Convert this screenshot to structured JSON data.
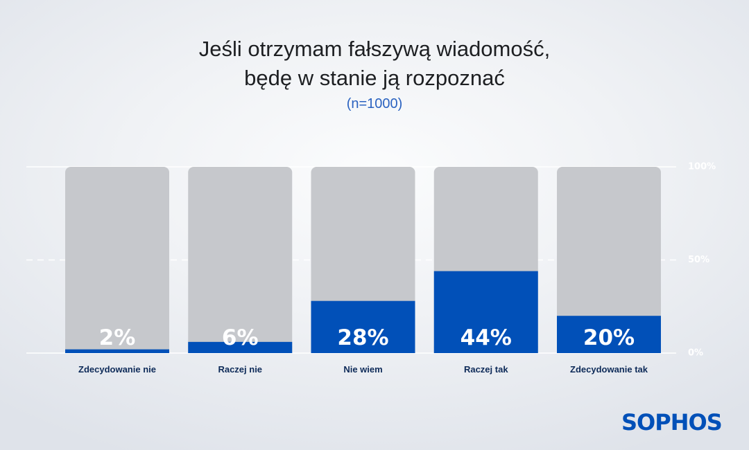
{
  "header": {
    "title_line1": "Jeśli otrzymam fałszywą wiadomość,",
    "title_line2": "będę w stanie ją rozpoznać",
    "subtitle": "(n=1000)"
  },
  "brand": {
    "logo_text": "SOPHOS"
  },
  "colors": {
    "fill": "#0150b8",
    "track": "#c6c8cc",
    "category_text": "#0d2a58",
    "value_text": "#ffffff",
    "tick_text": "#ffffff",
    "gridline": "#ffffff",
    "logo": "#0150b8"
  },
  "chart_data": {
    "type": "bar",
    "title": "Jeśli otrzymam fałszywą wiadomość, będę w stanie ją rozpoznać",
    "subtitle": "(n=1000)",
    "categories": [
      "Zdecydowanie nie",
      "Raczej nie",
      "Nie wiem",
      "Raczej tak",
      "Zdecydowanie tak"
    ],
    "values": [
      2,
      6,
      28,
      44,
      20
    ],
    "value_labels": [
      "2%",
      "6%",
      "28%",
      "44%",
      "20%"
    ],
    "ylim": [
      0,
      100
    ],
    "yticks": [
      0,
      50,
      100
    ],
    "ytick_labels": [
      "0%",
      "50%",
      "100%"
    ],
    "grid": true,
    "legend": "none"
  }
}
